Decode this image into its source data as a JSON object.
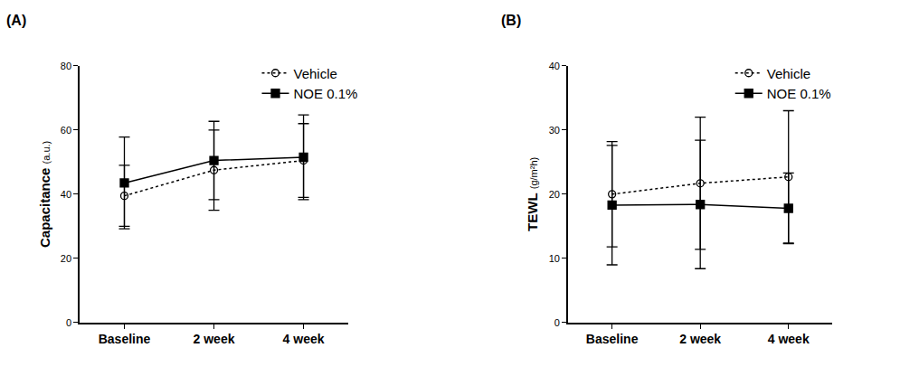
{
  "chart_data": [
    {
      "type": "line",
      "title": "(A)",
      "y_label": "Capacitance (a.u.)",
      "categories": [
        "Baseline",
        "2 week",
        "4 week"
      ],
      "ylim": [
        0,
        80
      ],
      "yticks": [
        0,
        20,
        40,
        60,
        80
      ],
      "grid": false,
      "legend": "top right",
      "series": [
        {
          "name": "Vehicle",
          "color": "#000000",
          "marker": "circle-open",
          "line_style": "dashed",
          "values": [
            39.5,
            47.5,
            50.5
          ],
          "errors": [
            9.5,
            12.5,
            11.5
          ]
        },
        {
          "name": "NOE 0.1%",
          "color": "#000000",
          "marker": "square",
          "line_style": "solid",
          "values": [
            43.5,
            50.5,
            51.5
          ],
          "errors": [
            14.3,
            12.2,
            13.2
          ]
        }
      ]
    },
    {
      "type": "line",
      "title": "(B)",
      "y_label": "TEWL (g/m²h)",
      "categories": [
        "Baseline",
        "2 week",
        "4 week"
      ],
      "ylim": [
        0,
        40
      ],
      "yticks": [
        0,
        10,
        20,
        30,
        40
      ],
      "grid": false,
      "legend": "top right",
      "series": [
        {
          "name": "Vehicle",
          "color": "#000000",
          "marker": "circle-open",
          "line_style": "dashed",
          "values": [
            20.0,
            21.7,
            22.7
          ],
          "errors": [
            8.2,
            10.3,
            10.3
          ]
        },
        {
          "name": "NOE 0.1%",
          "color": "#000000",
          "marker": "square",
          "line_style": "solid",
          "values": [
            18.3,
            18.4,
            17.8
          ],
          "errors": [
            9.3,
            10.0,
            5.5
          ]
        }
      ]
    }
  ]
}
